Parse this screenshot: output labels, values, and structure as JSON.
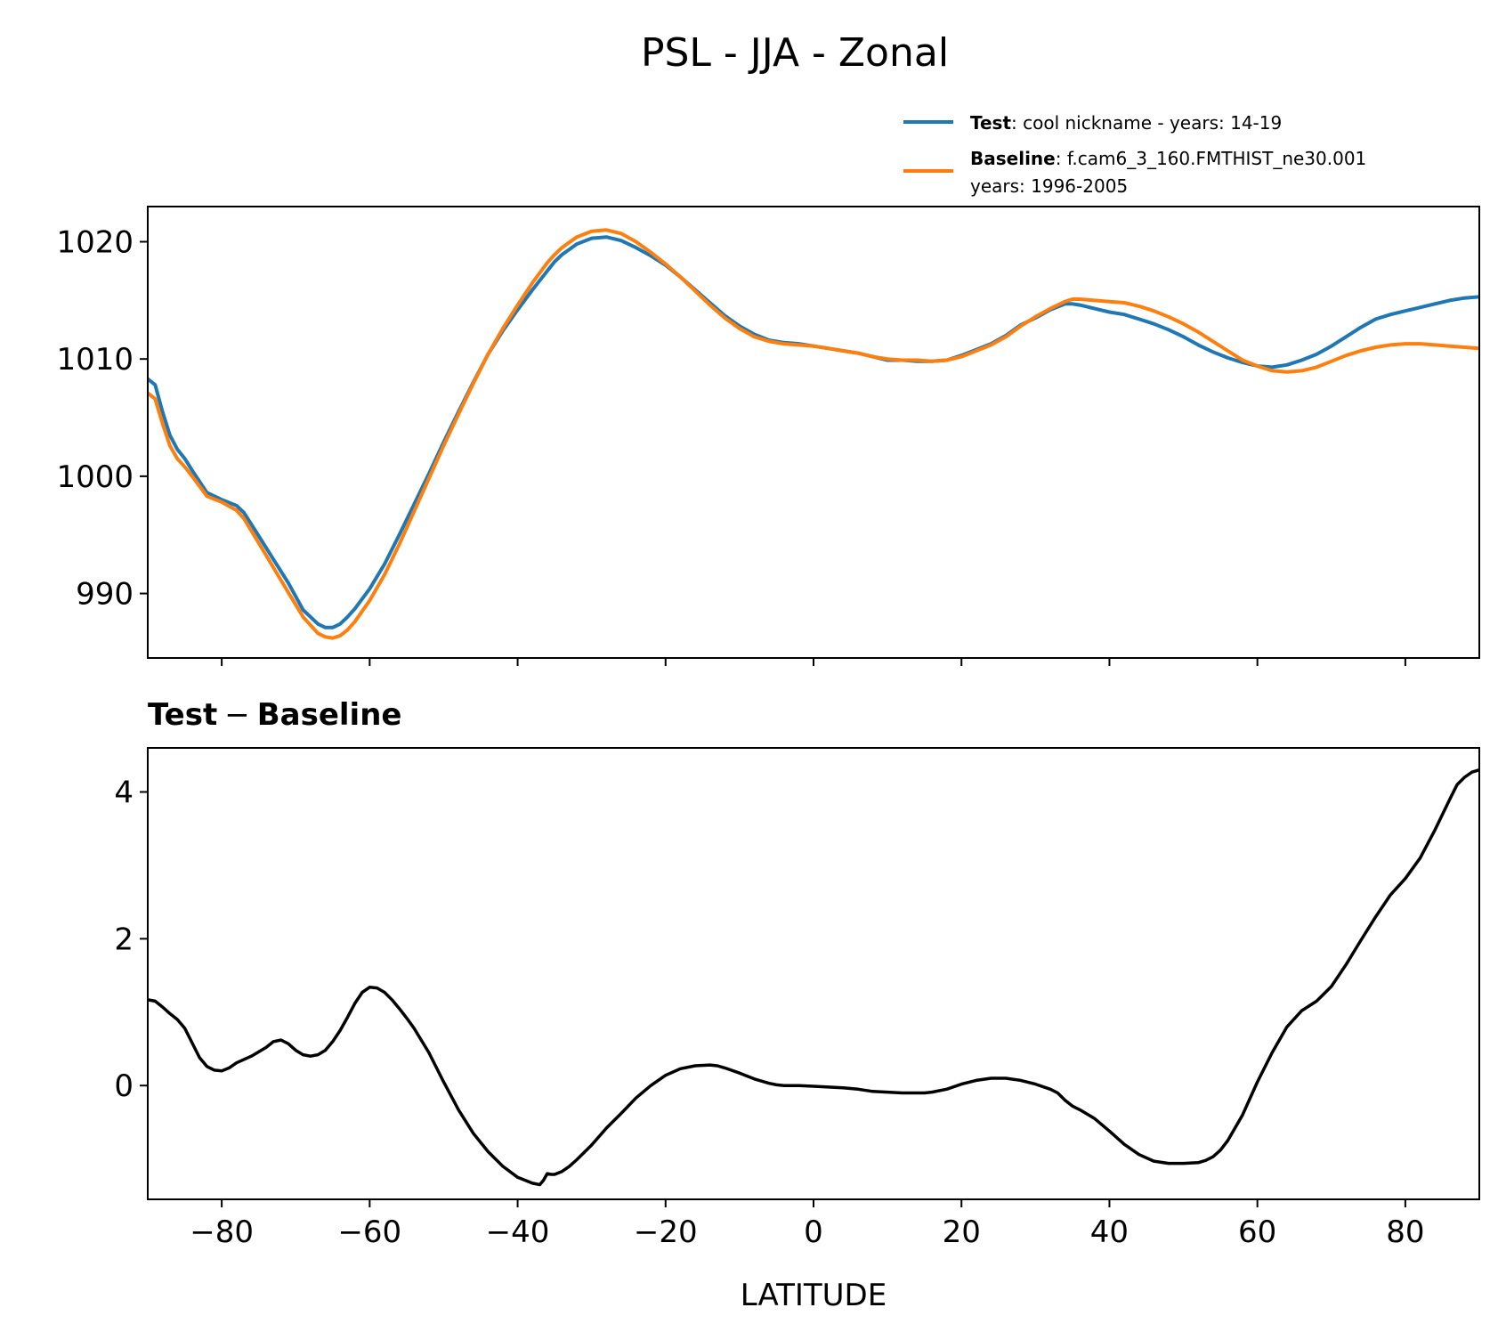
{
  "figure": {
    "title": "PSL - JJA - Zonal",
    "xlabel": "LATITUDE",
    "legend": {
      "test_label": "Test",
      "test_desc": ": cool nickname - years: 14-19",
      "baseline_label": "Baseline",
      "baseline_desc": ": f.cam6_3_160.FMTHIST_ne30.001",
      "baseline_desc2": "years: 1996-2005"
    },
    "diff_title_test": "Test",
    "diff_title_minus": "−",
    "diff_title_baseline": "Baseline"
  },
  "chart_data": [
    {
      "type": "line",
      "title": "PSL - JJA - Zonal",
      "xlabel": "",
      "ylabel": "",
      "xlim": [
        -90,
        90
      ],
      "ylim": [
        984.5,
        1023
      ],
      "xticks": [
        -80,
        -60,
        -40,
        -20,
        0,
        20,
        40,
        60,
        80
      ],
      "yticks": [
        990,
        1000,
        1010,
        1020
      ],
      "ytick_labels": [
        "990",
        "1000",
        "1010",
        "1020"
      ],
      "legend_position": "above-right",
      "series": [
        {
          "name": "Test",
          "color": "#1f77b4",
          "x": [
            -90,
            -89,
            -88,
            -87,
            -86,
            -85,
            -84,
            -82,
            -80,
            -78,
            -77,
            -75,
            -73,
            -71,
            -69,
            -67,
            -66,
            -65,
            -64,
            -63,
            -62,
            -60,
            -58,
            -56,
            -54,
            -52,
            -50,
            -48,
            -46,
            -44,
            -42,
            -40,
            -38,
            -36,
            -35,
            -34,
            -32,
            -30,
            -28,
            -26,
            -24,
            -22,
            -20,
            -18,
            -16,
            -14,
            -12,
            -10,
            -8,
            -6,
            -4,
            -2,
            0,
            2,
            4,
            6,
            8,
            10,
            12,
            14,
            16,
            18,
            20,
            22,
            24,
            26,
            28,
            30,
            32,
            34,
            35,
            36,
            38,
            40,
            42,
            44,
            46,
            48,
            50,
            52,
            54,
            56,
            58,
            60,
            62,
            64,
            66,
            68,
            70,
            72,
            74,
            76,
            78,
            80,
            82,
            84,
            86,
            88,
            90
          ],
          "values": [
            1008.3,
            1007.8,
            1005.5,
            1003.5,
            1002.3,
            1001.5,
            1000.5,
            998.6,
            998.0,
            997.5,
            996.9,
            994.9,
            992.9,
            990.9,
            988.6,
            987.4,
            987.1,
            987.1,
            987.4,
            988.0,
            988.7,
            990.4,
            992.5,
            995.0,
            997.6,
            1000.2,
            1002.9,
            1005.5,
            1008.0,
            1010.4,
            1012.4,
            1014.2,
            1015.9,
            1017.5,
            1018.3,
            1018.9,
            1019.8,
            1020.3,
            1020.4,
            1020.1,
            1019.5,
            1018.8,
            1018.0,
            1017.0,
            1015.9,
            1014.8,
            1013.7,
            1012.8,
            1012.1,
            1011.6,
            1011.4,
            1011.3,
            1011.1,
            1010.9,
            1010.7,
            1010.5,
            1010.2,
            1009.9,
            1009.9,
            1009.8,
            1009.8,
            1009.9,
            1010.3,
            1010.8,
            1011.3,
            1012.0,
            1012.9,
            1013.5,
            1014.2,
            1014.7,
            1014.7,
            1014.6,
            1014.3,
            1014.0,
            1013.8,
            1013.4,
            1013.0,
            1012.5,
            1011.9,
            1011.2,
            1010.6,
            1010.1,
            1009.7,
            1009.4,
            1009.3,
            1009.5,
            1009.9,
            1010.4,
            1011.1,
            1011.9,
            1012.7,
            1013.4,
            1013.8,
            1014.1,
            1014.4,
            1014.7,
            1015.0,
            1015.2,
            1015.3
          ]
        },
        {
          "name": "Baseline",
          "color": "#ff7f0e",
          "x": [
            -90,
            -89,
            -88,
            -87,
            -86,
            -85,
            -84,
            -82,
            -80,
            -78,
            -77,
            -75,
            -73,
            -71,
            -69,
            -67,
            -66,
            -65,
            -64,
            -63,
            -62,
            -60,
            -58,
            -56,
            -54,
            -52,
            -50,
            -48,
            -46,
            -44,
            -42,
            -40,
            -38,
            -36,
            -35,
            -34,
            -32,
            -30,
            -28,
            -26,
            -24,
            -22,
            -20,
            -18,
            -16,
            -14,
            -12,
            -10,
            -8,
            -6,
            -4,
            -2,
            0,
            2,
            4,
            6,
            8,
            10,
            12,
            14,
            16,
            18,
            20,
            22,
            24,
            26,
            28,
            30,
            32,
            34,
            35,
            36,
            38,
            40,
            42,
            44,
            46,
            48,
            50,
            52,
            54,
            56,
            58,
            60,
            62,
            64,
            66,
            68,
            70,
            72,
            74,
            76,
            78,
            80,
            82,
            84,
            86,
            88,
            90
          ],
          "values": [
            1007.1,
            1006.6,
            1004.5,
            1002.6,
            1001.5,
            1000.8,
            1000.0,
            998.3,
            997.8,
            997.1,
            996.4,
            994.3,
            992.2,
            990.1,
            988.0,
            986.6,
            986.3,
            986.2,
            986.4,
            986.9,
            987.6,
            989.4,
            991.6,
            994.2,
            997.0,
            999.8,
            1002.6,
            1005.3,
            1007.9,
            1010.4,
            1012.6,
            1014.6,
            1016.5,
            1018.2,
            1018.9,
            1019.5,
            1020.4,
            1020.9,
            1021.0,
            1020.7,
            1020.0,
            1019.1,
            1018.1,
            1017.0,
            1015.8,
            1014.6,
            1013.5,
            1012.6,
            1011.9,
            1011.5,
            1011.3,
            1011.2,
            1011.1,
            1010.9,
            1010.7,
            1010.5,
            1010.2,
            1010.0,
            1009.9,
            1009.9,
            1009.8,
            1009.9,
            1010.2,
            1010.7,
            1011.2,
            1011.9,
            1012.8,
            1013.6,
            1014.3,
            1014.9,
            1015.1,
            1015.1,
            1015.0,
            1014.9,
            1014.8,
            1014.5,
            1014.1,
            1013.6,
            1013.0,
            1012.3,
            1011.5,
            1010.7,
            1009.9,
            1009.4,
            1009.0,
            1008.9,
            1009.0,
            1009.3,
            1009.8,
            1010.3,
            1010.7,
            1011.0,
            1011.2,
            1011.3,
            1011.3,
            1011.2,
            1011.1,
            1011.0,
            1010.9
          ]
        }
      ]
    },
    {
      "type": "line",
      "title": "Test − Baseline",
      "xlabel": "LATITUDE",
      "ylabel": "",
      "xlim": [
        -90,
        90
      ],
      "ylim": [
        -1.55,
        4.6
      ],
      "xticks": [
        -80,
        -60,
        -40,
        -20,
        0,
        20,
        40,
        60,
        80
      ],
      "xtick_labels": [
        "−80",
        "−60",
        "−40",
        "−20",
        "0",
        "20",
        "40",
        "60",
        "80"
      ],
      "yticks": [
        0,
        2,
        4
      ],
      "ytick_labels": [
        "0",
        "2",
        "4"
      ],
      "series": [
        {
          "name": "Test - Baseline",
          "color": "#000000",
          "x": [
            -90,
            -89,
            -88,
            -87,
            -86,
            -85,
            -84,
            -83,
            -82,
            -81,
            -80,
            -79,
            -78,
            -76,
            -74,
            -73,
            -72,
            -71,
            -70,
            -69,
            -68,
            -67,
            -66,
            -65,
            -64,
            -63,
            -62,
            -61,
            -60,
            -59,
            -58,
            -57,
            -56,
            -55,
            -54,
            -52,
            -50,
            -48,
            -46,
            -44,
            -42,
            -40,
            -38,
            -37,
            -36.5,
            -36,
            -35.5,
            -35,
            -34,
            -33,
            -32,
            -30,
            -28,
            -26,
            -24,
            -22,
            -20,
            -18,
            -16,
            -14,
            -13,
            -12,
            -10,
            -8,
            -6,
            -5,
            -4,
            -2,
            0,
            2,
            4,
            6,
            8,
            10,
            12,
            14,
            15,
            16,
            18,
            20,
            22,
            24,
            26,
            28,
            30,
            32,
            33,
            34,
            35,
            36,
            38,
            40,
            42,
            44,
            46,
            48,
            50,
            52,
            53,
            54,
            55,
            56,
            58,
            60,
            62,
            64,
            66,
            68,
            70,
            72,
            74,
            76,
            78,
            80,
            82,
            84,
            86,
            87,
            88,
            89,
            90
          ],
          "values": [
            1.17,
            1.15,
            1.07,
            0.98,
            0.9,
            0.78,
            0.58,
            0.38,
            0.26,
            0.21,
            0.2,
            0.24,
            0.31,
            0.4,
            0.52,
            0.6,
            0.62,
            0.57,
            0.48,
            0.42,
            0.4,
            0.42,
            0.48,
            0.6,
            0.75,
            0.93,
            1.12,
            1.27,
            1.34,
            1.33,
            1.27,
            1.17,
            1.05,
            0.92,
            0.78,
            0.45,
            0.05,
            -0.33,
            -0.65,
            -0.9,
            -1.1,
            -1.25,
            -1.33,
            -1.35,
            -1.29,
            -1.2,
            -1.21,
            -1.21,
            -1.17,
            -1.1,
            -1.01,
            -0.81,
            -0.58,
            -0.38,
            -0.17,
            0.0,
            0.14,
            0.23,
            0.27,
            0.28,
            0.27,
            0.24,
            0.17,
            0.09,
            0.03,
            0.01,
            0.0,
            0.0,
            -0.01,
            -0.02,
            -0.03,
            -0.05,
            -0.08,
            -0.09,
            -0.1,
            -0.1,
            -0.1,
            -0.09,
            -0.05,
            0.02,
            0.07,
            0.1,
            0.1,
            0.07,
            0.02,
            -0.05,
            -0.1,
            -0.2,
            -0.28,
            -0.33,
            -0.45,
            -0.62,
            -0.8,
            -0.94,
            -1.03,
            -1.06,
            -1.06,
            -1.05,
            -1.02,
            -0.97,
            -0.88,
            -0.75,
            -0.4,
            0.05,
            0.45,
            0.8,
            1.02,
            1.15,
            1.35,
            1.65,
            1.98,
            2.3,
            2.6,
            2.82,
            3.1,
            3.48,
            3.9,
            4.1,
            4.2,
            4.27,
            4.3
          ]
        }
      ]
    }
  ]
}
